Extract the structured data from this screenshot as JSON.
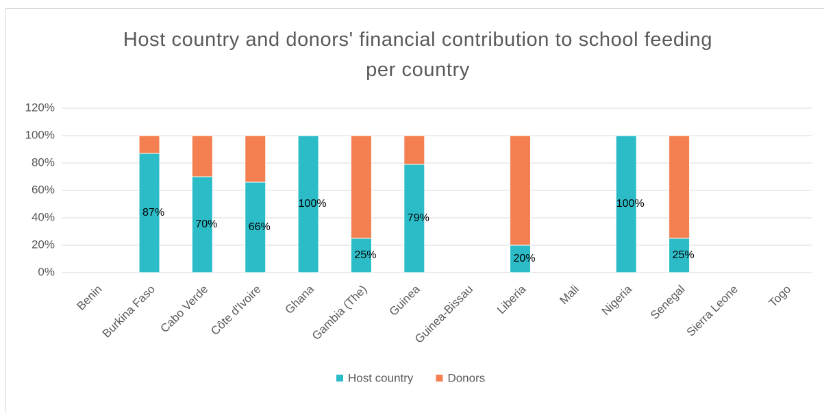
{
  "chart_data": {
    "type": "stacked_bar",
    "title": "Host country and donors' financial contribution to school feeding per country",
    "categories": [
      "Benin",
      "Burkina Faso",
      "Cabo Verde",
      "Côte d'Ivoire",
      "Ghana",
      "Gambia (The)",
      "Guinea",
      "Guinea-Bissau",
      "Liberia",
      "Mali",
      "Nigeria",
      "Senegal",
      "Sierra Leone",
      "Togo"
    ],
    "series": [
      {
        "name": "Host country",
        "color": "#2cbcc8",
        "values": [
          null,
          87,
          70,
          66,
          100,
          25,
          79,
          null,
          20,
          null,
          100,
          25,
          null,
          null
        ],
        "value_labels": [
          null,
          "87%",
          "70%",
          "66%",
          "100%",
          "25%",
          "79%",
          null,
          "20%",
          null,
          "100%",
          "25%",
          null,
          null
        ]
      },
      {
        "name": "Donors",
        "color": "#f47f50",
        "values": [
          null,
          13,
          30,
          34,
          0,
          75,
          21,
          null,
          80,
          null,
          0,
          75,
          null,
          null
        ]
      }
    ],
    "ylim": [
      0,
      120
    ],
    "yticks": [
      {
        "value": 0,
        "label": "0%"
      },
      {
        "value": 20,
        "label": "20%"
      },
      {
        "value": 40,
        "label": "40%"
      },
      {
        "value": 60,
        "label": "60%"
      },
      {
        "value": 80,
        "label": "80%"
      },
      {
        "value": 100,
        "label": "100%"
      },
      {
        "value": 120,
        "label": "120%"
      }
    ],
    "grid": true,
    "legend": "bottom"
  }
}
